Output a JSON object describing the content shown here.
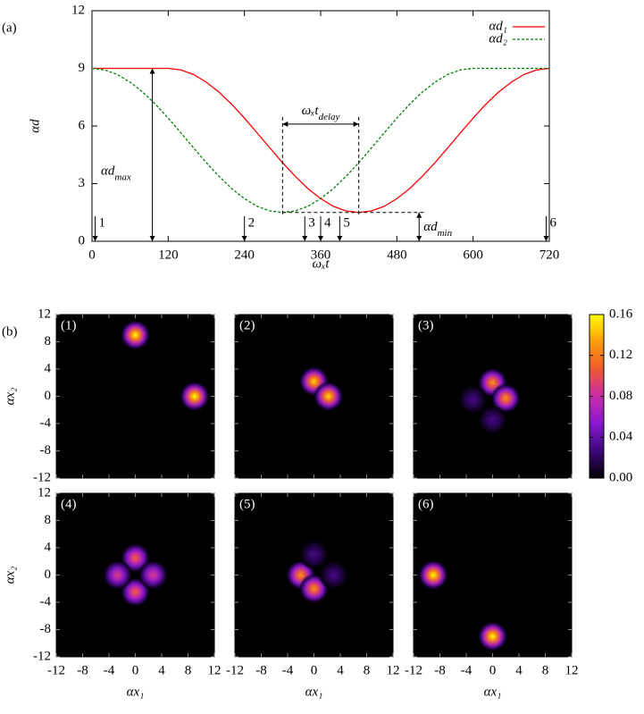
{
  "chart_data": [
    {
      "type": "line",
      "panel_label": "(a)",
      "xlabel": "ωₓt",
      "ylabel": "αd",
      "xlim": [
        0,
        720
      ],
      "ylim": [
        0,
        12
      ],
      "xticks": [
        0,
        120,
        240,
        360,
        480,
        600,
        720
      ],
      "yticks": [
        0,
        3,
        6,
        9,
        12
      ],
      "x": [
        0,
        20,
        40,
        60,
        80,
        100,
        120,
        140,
        160,
        180,
        200,
        220,
        240,
        260,
        280,
        300,
        320,
        340,
        360,
        380,
        400,
        420,
        440,
        460,
        480,
        500,
        520,
        540,
        560,
        580,
        600,
        620,
        640,
        660,
        680,
        700,
        720
      ],
      "series": [
        {
          "name": "αd₁",
          "color": "#ff0000",
          "dashed": false,
          "values": [
            9,
            9,
            9,
            9,
            9,
            9,
            9,
            8.92,
            8.68,
            8.28,
            7.76,
            7.13,
            6.41,
            5.64,
            4.86,
            4.09,
            3.38,
            2.74,
            2.22,
            1.82,
            1.58,
            1.5,
            1.58,
            1.82,
            2.22,
            2.74,
            3.38,
            4.09,
            4.86,
            5.64,
            6.41,
            7.13,
            7.76,
            8.28,
            8.68,
            8.92,
            9
          ]
        },
        {
          "name": "αd₂",
          "color": "#008000",
          "dashed": true,
          "values": [
            9,
            8.92,
            8.68,
            8.28,
            7.76,
            7.13,
            6.41,
            5.64,
            4.86,
            4.09,
            3.38,
            2.74,
            2.22,
            1.82,
            1.58,
            1.5,
            1.58,
            1.82,
            2.22,
            2.74,
            3.38,
            4.09,
            4.86,
            5.64,
            6.41,
            7.13,
            7.76,
            8.28,
            8.68,
            8.92,
            9,
            9,
            9,
            9,
            9,
            9,
            9
          ]
        }
      ],
      "legend": "top-right",
      "markers": [
        {
          "x": 5,
          "label": "1"
        },
        {
          "x": 240,
          "label": "2"
        },
        {
          "x": 335,
          "label": "3"
        },
        {
          "x": 360,
          "label": "4"
        },
        {
          "x": 390,
          "label": "5"
        },
        {
          "x": 715,
          "label": "6"
        }
      ],
      "max_annotation": {
        "text": "αd",
        "sub": "max",
        "x": 95,
        "y": [
          0,
          9
        ]
      },
      "min_annotation": {
        "text": "αd",
        "sub": "min",
        "x": 515,
        "y": [
          0,
          1.5
        ],
        "line_x": [
          300,
          515
        ]
      },
      "delay_annotation": {
        "text": "ωₓt",
        "sub": "delay",
        "x": [
          300,
          420
        ],
        "y": 6.1
      }
    },
    {
      "type": "heatmap",
      "panel_label": "(b)",
      "label": "(1)",
      "xlim": [
        -12,
        12
      ],
      "ylim": [
        -12,
        12
      ],
      "xticks": [
        -12,
        -8,
        -4,
        0,
        4,
        8,
        12
      ],
      "yticks": [
        -12,
        -8,
        -4,
        0,
        4,
        8,
        12
      ],
      "xticklabels": false,
      "yticklabels": true,
      "ylabel": "αx₂",
      "spots": [
        {
          "x": 0,
          "y": 9,
          "value": 0.16
        },
        {
          "x": 9,
          "y": 0,
          "value": 0.16
        }
      ]
    },
    {
      "type": "heatmap",
      "label": "(2)",
      "xlim": [
        -12,
        12
      ],
      "ylim": [
        -12,
        12
      ],
      "xticks": [
        -12,
        -8,
        -4,
        0,
        4,
        8,
        12
      ],
      "yticks": [
        -12,
        -8,
        -4,
        0,
        4,
        8,
        12
      ],
      "xticklabels": false,
      "yticklabels": false,
      "spots": [
        {
          "x": 0,
          "y": 2.2,
          "value": 0.15
        },
        {
          "x": 2.2,
          "y": 0,
          "value": 0.15
        }
      ]
    },
    {
      "type": "heatmap",
      "label": "(3)",
      "xlim": [
        -12,
        12
      ],
      "ylim": [
        -12,
        12
      ],
      "xticks": [
        -12,
        -8,
        -4,
        0,
        4,
        8,
        12
      ],
      "yticks": [
        -12,
        -8,
        -4,
        0,
        4,
        8,
        12
      ],
      "xticklabels": false,
      "yticklabels": false,
      "spots": [
        {
          "x": 0,
          "y": 2,
          "value": 0.13
        },
        {
          "x": 2,
          "y": -0.3,
          "value": 0.13
        },
        {
          "x": -3,
          "y": -0.5,
          "value": 0.03
        },
        {
          "x": 0,
          "y": -3.5,
          "value": 0.03
        }
      ]
    },
    {
      "type": "heatmap",
      "label": "(4)",
      "xlim": [
        -12,
        12
      ],
      "ylim": [
        -12,
        12
      ],
      "xticks": [
        -12,
        -8,
        -4,
        0,
        4,
        8,
        12
      ],
      "yticks": [
        -12,
        -8,
        -4,
        0,
        4,
        8,
        12
      ],
      "xticklabels": true,
      "yticklabels": true,
      "xlabel": "αx₁",
      "ylabel": "αx₂",
      "spots": [
        {
          "x": 0,
          "y": 2.5,
          "value": 0.11
        },
        {
          "x": 0,
          "y": -2.5,
          "value": 0.11
        },
        {
          "x": -2.7,
          "y": 0,
          "value": 0.09
        },
        {
          "x": 2.7,
          "y": 0,
          "value": 0.09
        }
      ]
    },
    {
      "type": "heatmap",
      "label": "(5)",
      "xlim": [
        -12,
        12
      ],
      "ylim": [
        -12,
        12
      ],
      "xticks": [
        -12,
        -8,
        -4,
        0,
        4,
        8,
        12
      ],
      "yticks": [
        -12,
        -8,
        -4,
        0,
        4,
        8,
        12
      ],
      "xticklabels": true,
      "yticklabels": false,
      "xlabel": "αx₁",
      "spots": [
        {
          "x": -2,
          "y": 0,
          "value": 0.13
        },
        {
          "x": 0,
          "y": -2,
          "value": 0.13
        },
        {
          "x": 0,
          "y": 3,
          "value": 0.03
        },
        {
          "x": 3,
          "y": 0,
          "value": 0.03
        }
      ]
    },
    {
      "type": "heatmap",
      "label": "(6)",
      "xlim": [
        -12,
        12
      ],
      "ylim": [
        -12,
        12
      ],
      "xticks": [
        -12,
        -8,
        -4,
        0,
        4,
        8,
        12
      ],
      "yticks": [
        -12,
        -8,
        -4,
        0,
        4,
        8,
        12
      ],
      "xticklabels": true,
      "yticklabels": false,
      "xlabel": "αx₁",
      "spots": [
        {
          "x": -9,
          "y": 0,
          "value": 0.16
        },
        {
          "x": 0,
          "y": -9,
          "value": 0.16
        }
      ]
    },
    {
      "type": "colorbar",
      "zlim": [
        0,
        0.16
      ],
      "zticks": [
        {
          "value": 0,
          "label": "0.00"
        },
        0.04,
        0.08,
        0.12,
        0.16
      ],
      "colormap": [
        "#000000",
        "#3a0678",
        "#8a18d0",
        "#c82ca8",
        "#ee5a30",
        "#fb9c0c",
        "#ffff00"
      ]
    }
  ]
}
